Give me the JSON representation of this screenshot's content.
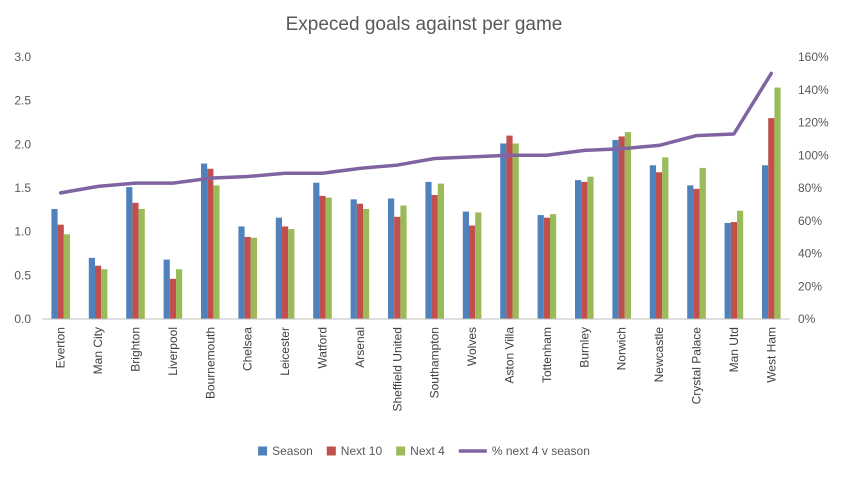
{
  "chart_data": {
    "type": "bar",
    "title": "Expeced goals against per game",
    "categories": [
      "Everton",
      "Man City",
      "Brighton",
      "Liverpool",
      "Bournemouth",
      "Chelsea",
      "Leicester",
      "Watford",
      "Arsenal",
      "Sheffield United",
      "Southampton",
      "Wolves",
      "Aston Villa",
      "Tottenham",
      "Burnley",
      "Norwich",
      "Newcastle",
      "Crystal Palace",
      "Man Utd",
      "West Ham"
    ],
    "series": [
      {
        "name": "Season",
        "type": "bar",
        "axis": "left",
        "color": "#4f81bd",
        "values": [
          1.26,
          0.7,
          1.51,
          0.68,
          1.78,
          1.06,
          1.16,
          1.56,
          1.37,
          1.38,
          1.57,
          1.23,
          2.01,
          1.19,
          1.59,
          2.05,
          1.76,
          1.53,
          1.1,
          1.76
        ]
      },
      {
        "name": "Next 10",
        "type": "bar",
        "axis": "left",
        "color": "#c0504d",
        "values": [
          1.08,
          0.61,
          1.33,
          0.46,
          1.72,
          0.94,
          1.06,
          1.41,
          1.32,
          1.17,
          1.42,
          1.07,
          2.1,
          1.16,
          1.57,
          2.09,
          1.68,
          1.49,
          1.11,
          2.3
        ]
      },
      {
        "name": "Next 4",
        "type": "bar",
        "axis": "left",
        "color": "#9bbb59",
        "values": [
          0.97,
          0.57,
          1.26,
          0.57,
          1.53,
          0.93,
          1.03,
          1.39,
          1.26,
          1.3,
          1.55,
          1.22,
          2.01,
          1.2,
          1.63,
          2.14,
          1.85,
          1.73,
          1.24,
          2.65
        ]
      },
      {
        "name": "% next 4 v season",
        "type": "line",
        "axis": "right",
        "color": "#8064a2",
        "values": [
          0.77,
          0.81,
          0.83,
          0.83,
          0.86,
          0.87,
          0.89,
          0.89,
          0.92,
          0.94,
          0.98,
          0.99,
          1.0,
          1.0,
          1.03,
          1.04,
          1.06,
          1.12,
          1.13,
          1.5
        ]
      }
    ],
    "y_left": {
      "min": 0,
      "max": 3.0,
      "ticks": [
        "0.0",
        "0.5",
        "1.0",
        "1.5",
        "2.0",
        "2.5",
        "3.0"
      ]
    },
    "y_right": {
      "min": 0,
      "max": 1.6,
      "ticks": [
        "0%",
        "20%",
        "40%",
        "60%",
        "80%",
        "100%",
        "120%",
        "140%",
        "160%"
      ]
    },
    "grid": false,
    "legend_position": "bottom"
  }
}
